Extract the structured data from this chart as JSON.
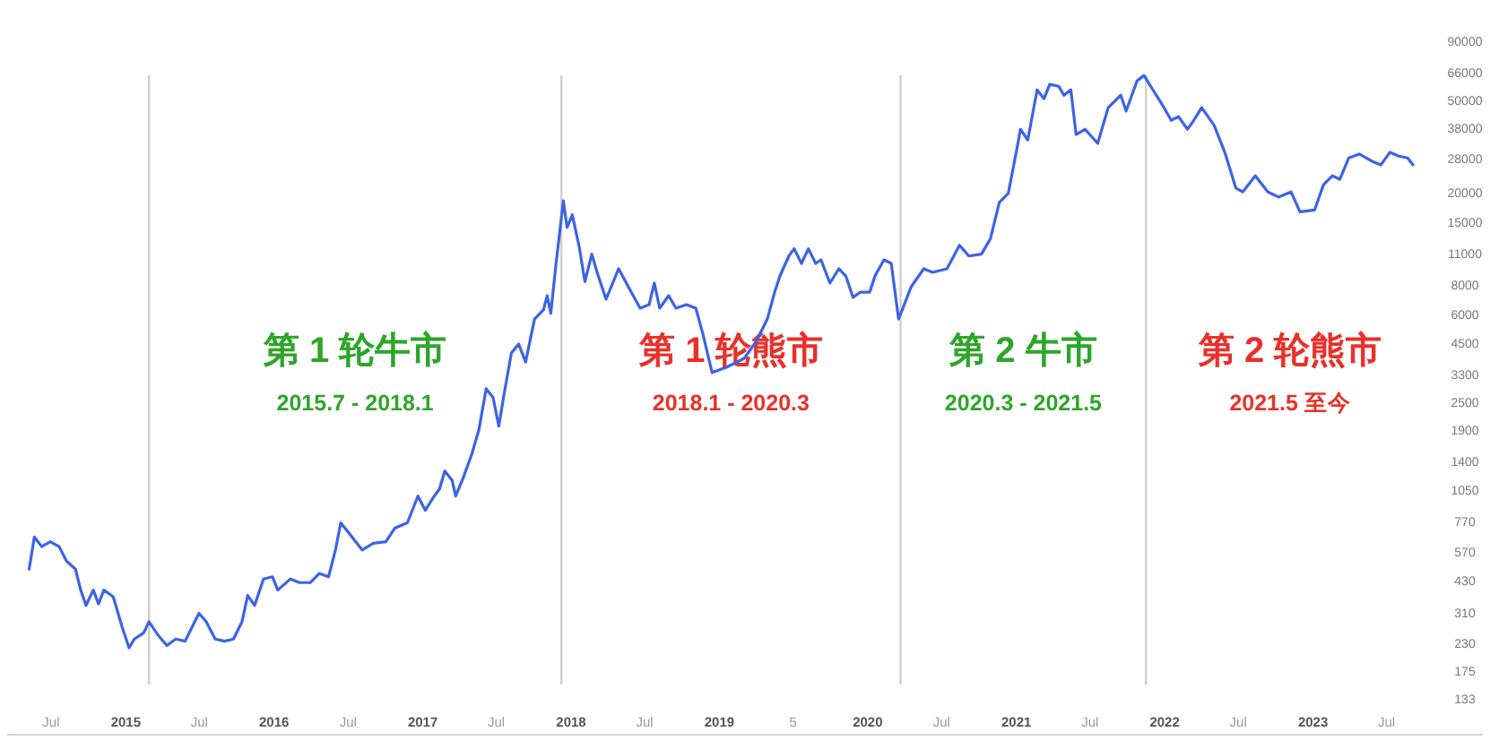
{
  "chart_data": {
    "type": "line",
    "log": true,
    "x": [
      "2014-05-08",
      "2014-05-21",
      "2014-06-08",
      "2014-06-29",
      "2014-07-21",
      "2014-08-08",
      "2014-08-30",
      "2014-09-12",
      "2014-09-25",
      "2014-10-13",
      "2014-10-26",
      "2014-11-08",
      "2014-12-01",
      "2014-12-23",
      "2015-01-09",
      "2015-01-22",
      "2015-02-14",
      "2015-02-27",
      "2015-03-21",
      "2015-04-12",
      "2015-05-04",
      "2015-05-27",
      "2015-06-13",
      "2015-06-30",
      "2015-07-18",
      "2015-08-09",
      "2015-09-01",
      "2015-09-23",
      "2015-10-14",
      "2015-10-28",
      "2015-11-14",
      "2015-12-06",
      "2015-12-28",
      "2016-01-10",
      "2016-02-10",
      "2016-03-03",
      "2016-03-30",
      "2016-04-21",
      "2016-05-14",
      "2016-05-31",
      "2016-06-13",
      "2016-07-05",
      "2016-08-05",
      "2016-09-01",
      "2016-10-02",
      "2016-10-24",
      "2016-11-24",
      "2016-12-20",
      "2017-01-07",
      "2017-01-29",
      "2017-02-11",
      "2017-02-24",
      "2017-03-14",
      "2017-03-23",
      "2017-04-10",
      "2017-05-02",
      "2017-05-19",
      "2017-06-06",
      "2017-06-23",
      "2017-07-07",
      "2017-07-20",
      "2017-08-07",
      "2017-08-25",
      "2017-09-11",
      "2017-10-03",
      "2017-10-25",
      "2017-11-03",
      "2017-11-12",
      "2017-11-25",
      "2017-12-13",
      "2017-12-22",
      "2018-01-04",
      "2018-01-21",
      "2018-02-04",
      "2018-02-21",
      "2018-03-06",
      "2018-03-28",
      "2018-04-28",
      "2018-05-29",
      "2018-06-20",
      "2018-07-12",
      "2018-07-25",
      "2018-08-07",
      "2018-08-29",
      "2018-09-16",
      "2018-10-12",
      "2018-11-04",
      "2018-11-22",
      "2018-12-14",
      "2019-01-18",
      "2019-03-03",
      "2019-04-03",
      "2019-04-29",
      "2019-05-17",
      "2019-05-30",
      "2019-06-21",
      "2019-07-04",
      "2019-07-22",
      "2019-08-08",
      "2019-08-26",
      "2019-09-08",
      "2019-09-30",
      "2019-10-22",
      "2019-11-08",
      "2019-11-26",
      "2019-12-14",
      "2020-01-06",
      "2020-01-19",
      "2020-02-10",
      "2020-02-28",
      "2020-03-17",
      "2020-03-26",
      "2020-04-17",
      "2020-05-18",
      "2020-06-09",
      "2020-07-14",
      "2020-08-14",
      "2020-09-06",
      "2020-10-07",
      "2020-10-29",
      "2020-11-20",
      "2020-12-12",
      "2021-01-03",
      "2021-01-11",
      "2021-01-29",
      "2021-02-21",
      "2021-03-10",
      "2021-03-24",
      "2021-04-15",
      "2021-04-28",
      "2021-05-15",
      "2021-05-28",
      "2021-06-19",
      "2021-07-20",
      "2021-08-15",
      "2021-09-15",
      "2021-09-28",
      "2021-10-25",
      "2021-11-11",
      "2021-12-03",
      "2021-12-25",
      "2022-01-17",
      "2022-02-04",
      "2022-02-26",
      "2022-03-11",
      "2022-04-02",
      "2022-05-03",
      "2022-05-29",
      "2022-06-25",
      "2022-07-12",
      "2022-08-12",
      "2022-09-12",
      "2022-10-08",
      "2022-11-08",
      "2022-11-30",
      "2023-01-05",
      "2023-01-27",
      "2023-02-18",
      "2023-03-08",
      "2023-03-30",
      "2023-04-25",
      "2023-05-26",
      "2023-06-17",
      "2023-07-09",
      "2023-07-31",
      "2023-08-22",
      "2023-09-04"
    ],
    "series": [
      {
        "color": "#3d63e6",
        "values": [
          480,
          660,
          600,
          630,
          600,
          520,
          480,
          390,
          335,
          390,
          340,
          390,
          365,
          270,
          220,
          240,
          255,
          285,
          250,
          225,
          240,
          235,
          270,
          310,
          285,
          240,
          235,
          240,
          285,
          370,
          335,
          435,
          445,
          390,
          435,
          420,
          420,
          460,
          445,
          580,
          760,
          680,
          580,
          620,
          630,
          720,
          760,
          990,
          860,
          990,
          1060,
          1270,
          1160,
          990,
          1180,
          1510,
          1910,
          2870,
          2630,
          1980,
          2720,
          4090,
          4470,
          3740,
          5730,
          6270,
          7220,
          6050,
          9940,
          18500,
          14200,
          16100,
          11700,
          8300,
          10900,
          9100,
          6970,
          9430,
          7480,
          6380,
          6610,
          8180,
          6380,
          7220,
          6380,
          6610,
          6380,
          4890,
          3370,
          3550,
          3880,
          4630,
          5730,
          7480,
          8780,
          10700,
          11500,
          9940,
          11500,
          9940,
          10300,
          8180,
          9430,
          8780,
          7100,
          7480,
          7480,
          8780,
          10300,
          9940,
          5730,
          6270,
          7890,
          9430,
          9100,
          9430,
          11900,
          10700,
          10900,
          12700,
          18200,
          19900,
          31500,
          37600,
          33800,
          55600,
          50900,
          58700,
          57600,
          52700,
          55600,
          35700,
          37600,
          32700,
          46600,
          52700,
          45000,
          60800,
          64100,
          55600,
          48300,
          41100,
          42600,
          37600,
          40400,
          46600,
          39000,
          29900,
          21000,
          20200,
          23700,
          20200,
          19200,
          20200,
          16600,
          16900,
          21700,
          23700,
          22900,
          28300,
          29400,
          27400,
          26400,
          29900,
          28800,
          28300,
          26400
        ]
      }
    ],
    "xlim": [
      "2014-03-15",
      "2024-02-23"
    ],
    "xticks": [
      {
        "value": "2014-07-01",
        "label": "Jul"
      },
      {
        "value": "2015-01-01",
        "label": "2015"
      },
      {
        "value": "2015-07-01",
        "label": "Jul"
      },
      {
        "value": "2016-01-01",
        "label": "2016"
      },
      {
        "value": "2016-07-01",
        "label": "Jul"
      },
      {
        "value": "2017-01-01",
        "label": "2017"
      },
      {
        "value": "2017-07-01",
        "label": "Jul"
      },
      {
        "value": "2018-01-01",
        "label": "2018"
      },
      {
        "value": "2018-07-01",
        "label": "Jul"
      },
      {
        "value": "2019-01-01",
        "label": "2019"
      },
      {
        "value": "2019-07-01",
        "label": "5"
      },
      {
        "value": "2020-01-01",
        "label": "2020"
      },
      {
        "value": "2020-07-01",
        "label": "Jul"
      },
      {
        "value": "2021-01-01",
        "label": "2021"
      },
      {
        "value": "2021-07-01",
        "label": "Jul"
      },
      {
        "value": "2022-01-01",
        "label": "2022"
      },
      {
        "value": "2022-07-01",
        "label": "Jul"
      },
      {
        "value": "2023-01-01",
        "label": "2023"
      },
      {
        "value": "2023-07-01",
        "label": "Jul"
      }
    ],
    "ylim": [
      93,
      90000
    ],
    "yticks": [
      133,
      175,
      230,
      310,
      430,
      570,
      770,
      1050,
      1400,
      1900,
      2500,
      3300,
      4500,
      6000,
      8000,
      11000,
      15000,
      20000,
      28000,
      38000,
      50000,
      66000,
      90000
    ],
    "ref_lines": [
      {
        "axis": "x",
        "value": "2015-02-27",
        "color": "#cfcfcf"
      },
      {
        "axis": "x",
        "value": "2017-12-08",
        "color": "#cfcfcf"
      },
      {
        "axis": "x",
        "value": "2020-03-22",
        "color": "#cfcfcf"
      },
      {
        "axis": "x",
        "value": "2021-11-16",
        "color": "#cfcfcf"
      }
    ],
    "annotations": [
      "第 1 轮牛市",
      "2015.7 - 2018.1",
      "第 1 轮熊市",
      "2018.1 - 2020.3",
      "第 2 牛市",
      "2020.3 - 2021.5",
      "第 2 轮熊市",
      "2021.5 至今"
    ]
  }
}
